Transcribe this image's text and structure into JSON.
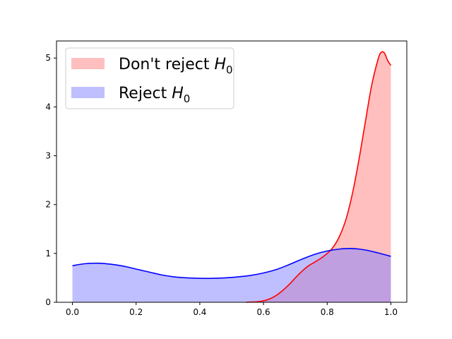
{
  "chart_data": {
    "type": "area",
    "title": "",
    "xlabel": "",
    "ylabel": "",
    "xlim": [
      -0.05,
      1.05
    ],
    "ylim": [
      0,
      5.35
    ],
    "xticks": [
      0.0,
      0.2,
      0.4,
      0.6,
      0.8,
      1.0
    ],
    "xtick_labels": [
      "0.0",
      "0.2",
      "0.4",
      "0.6",
      "0.8",
      "1.0"
    ],
    "yticks": [
      0,
      1,
      2,
      3,
      4,
      5
    ],
    "ytick_labels": [
      "0",
      "1",
      "2",
      "3",
      "4",
      "5"
    ],
    "grid": false,
    "legend_position": "top-left",
    "series": [
      {
        "name": "Don't reject H0",
        "legend_main": "Don't reject ",
        "legend_italic": "H",
        "legend_sub": "0",
        "line_color": "#ff0000",
        "fill_color": "#ff8080",
        "fill_opacity": 0.5,
        "x": [
          0.545,
          0.56,
          0.58,
          0.6,
          0.62,
          0.64,
          0.66,
          0.68,
          0.7,
          0.72,
          0.74,
          0.76,
          0.78,
          0.8,
          0.82,
          0.84,
          0.86,
          0.88,
          0.9,
          0.92,
          0.94,
          0.96,
          0.97,
          0.98,
          0.99,
          1.0
        ],
        "y": [
          0.0,
          0.005,
          0.01,
          0.03,
          0.07,
          0.14,
          0.24,
          0.36,
          0.5,
          0.63,
          0.74,
          0.82,
          0.9,
          1.0,
          1.14,
          1.37,
          1.72,
          2.25,
          2.93,
          3.7,
          4.45,
          4.98,
          5.12,
          5.1,
          4.95,
          4.85
        ]
      },
      {
        "name": "Reject H0",
        "legend_main": "Reject ",
        "legend_italic": "H",
        "legend_sub": "0",
        "line_color": "#0000ff",
        "fill_color": "#8080ff",
        "fill_opacity": 0.5,
        "x": [
          0.0,
          0.04,
          0.08,
          0.12,
          0.16,
          0.2,
          0.24,
          0.28,
          0.32,
          0.36,
          0.4,
          0.44,
          0.48,
          0.52,
          0.56,
          0.6,
          0.64,
          0.68,
          0.72,
          0.76,
          0.8,
          0.84,
          0.88,
          0.92,
          0.96,
          1.0
        ],
        "y": [
          0.75,
          0.79,
          0.8,
          0.78,
          0.74,
          0.68,
          0.62,
          0.56,
          0.52,
          0.5,
          0.49,
          0.49,
          0.5,
          0.52,
          0.55,
          0.6,
          0.67,
          0.77,
          0.88,
          0.98,
          1.05,
          1.09,
          1.1,
          1.07,
          1.01,
          0.94
        ]
      }
    ]
  }
}
